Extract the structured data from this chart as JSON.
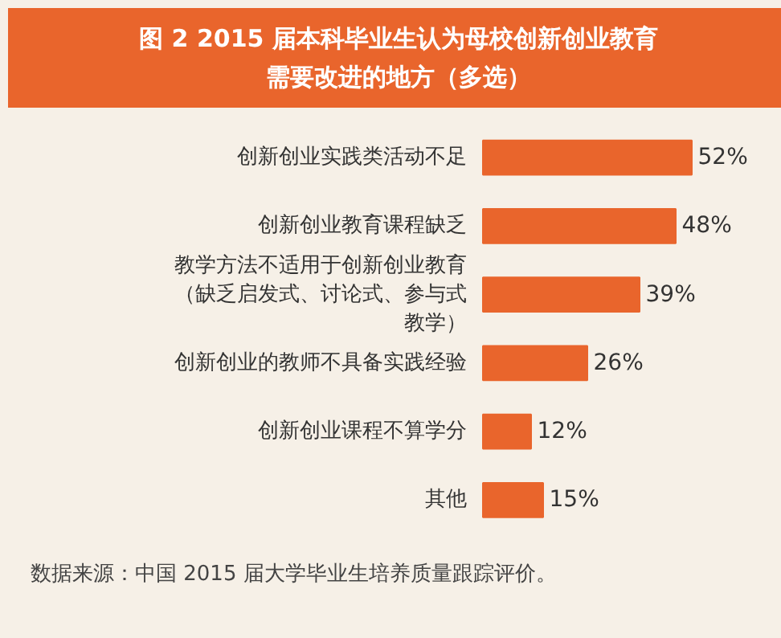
{
  "chart_data": {
    "type": "bar",
    "orientation": "horizontal",
    "title": "图 2 2015 届本科毕业生认为母校创新创业教育需要改进的地方（多选）",
    "categories": [
      "创新创业实践类活动不足",
      "创新创业教育课程缺乏",
      "教学方法不适用于创新创业教育（缺乏启发式、讨论式、参与式教学）",
      "创新创业的教师不具备实践经验",
      "创新创业课程不算学分",
      "其他"
    ],
    "values": [
      52,
      48,
      39,
      26,
      12,
      15
    ],
    "value_labels": [
      "52%",
      "48%",
      "39%",
      "26%",
      "12%",
      "15%"
    ],
    "color": "#e9652c",
    "annotations": [
      "数据来源：中国 2015 届大学毕业生培养质量跟踪评价。"
    ]
  }
}
